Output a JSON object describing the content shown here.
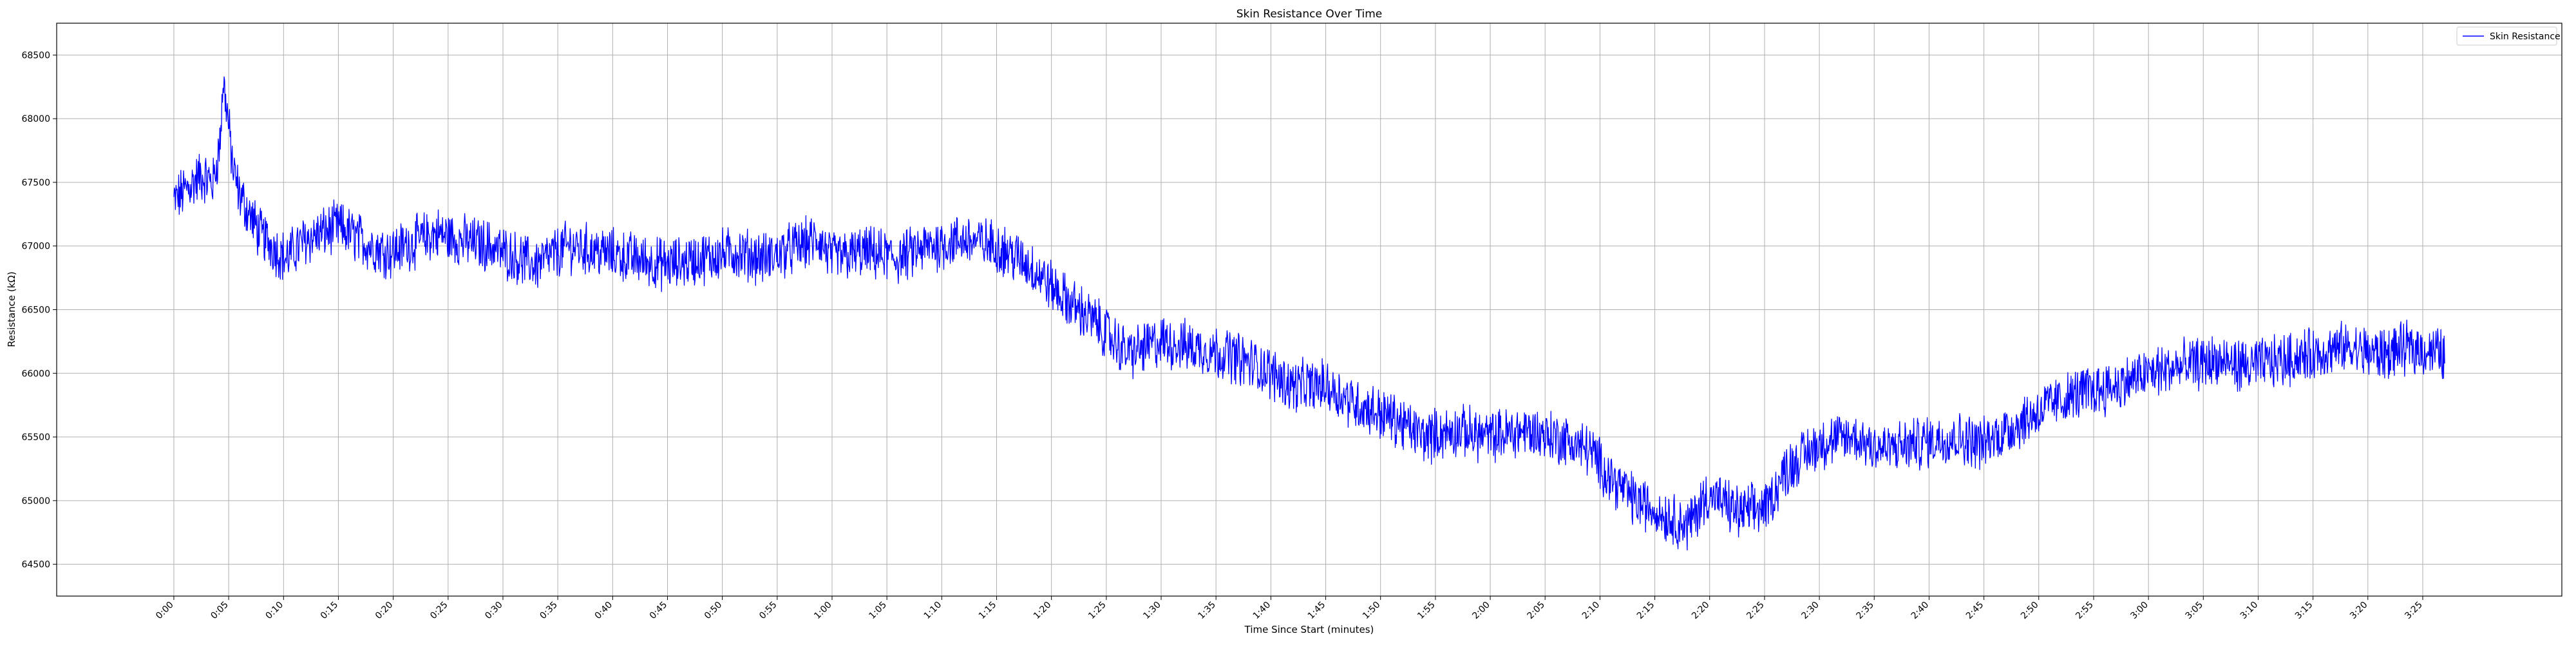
{
  "chart_data": {
    "type": "line",
    "title": "Skin Resistance Over Time",
    "xlabel": "Time Since Start (minutes)",
    "ylabel": "Resistance (kΩ)",
    "xlim": [
      -0.178,
      3.628
    ],
    "ylim": [
      64250,
      68750
    ],
    "x_ticks": [
      0,
      0.0833,
      0.1667,
      0.25,
      0.3333,
      0.4167,
      0.5,
      0.5833,
      0.6667,
      0.75,
      0.8333,
      0.9167,
      1.0,
      1.0833,
      1.1667,
      1.25,
      1.3333,
      1.4167,
      1.5,
      1.5833,
      1.6667,
      1.75,
      1.8333,
      1.9167,
      2.0,
      2.0833,
      2.1667,
      2.25,
      2.3333,
      2.4167,
      2.5,
      2.5833,
      2.6667,
      2.75,
      2.8333,
      2.9167,
      3.0,
      3.0833,
      3.1667,
      3.25,
      3.3333,
      3.4167
    ],
    "x_tick_labels": [
      "0:00",
      "0:05",
      "0:10",
      "0:15",
      "0:20",
      "0:25",
      "0:30",
      "0:35",
      "0:40",
      "0:45",
      "0:50",
      "0:55",
      "1:00",
      "1:05",
      "1:10",
      "1:15",
      "1:20",
      "1:25",
      "1:30",
      "1:35",
      "1:40",
      "1:45",
      "1:50",
      "1:55",
      "2:00",
      "2:05",
      "2:10",
      "2:15",
      "2:20",
      "2:25",
      "2:30",
      "2:35",
      "2:40",
      "2:45",
      "2:50",
      "2:55",
      "3:00",
      "3:05",
      "3:10",
      "3:15",
      "3:20",
      "3:25"
    ],
    "y_ticks": [
      64500,
      65000,
      65500,
      66000,
      66500,
      67000,
      67500,
      68000,
      68500
    ],
    "y_tick_labels": [
      "64500",
      "65000",
      "65500",
      "66000",
      "66500",
      "67000",
      "67500",
      "68000",
      "68500"
    ],
    "grid": true,
    "legend_position": "top-right",
    "series": [
      {
        "name": "Skin Resistance",
        "color": "#0000ff",
        "noise_amplitude": 180,
        "points": [
          [
            0.0,
            67350
          ],
          [
            0.02,
            67450
          ],
          [
            0.04,
            67550
          ],
          [
            0.06,
            67500
          ],
          [
            0.07,
            67800
          ],
          [
            0.075,
            68300
          ],
          [
            0.08,
            68100
          ],
          [
            0.09,
            67600
          ],
          [
            0.1,
            67400
          ],
          [
            0.13,
            67100
          ],
          [
            0.15,
            67000
          ],
          [
            0.17,
            66900
          ],
          [
            0.2,
            67050
          ],
          [
            0.25,
            67150
          ],
          [
            0.3,
            67000
          ],
          [
            0.33,
            66950
          ],
          [
            0.35,
            67000
          ],
          [
            0.4,
            67100
          ],
          [
            0.43,
            67050
          ],
          [
            0.48,
            67000
          ],
          [
            0.5,
            66950
          ],
          [
            0.55,
            66850
          ],
          [
            0.6,
            67000
          ],
          [
            0.65,
            66950
          ],
          [
            0.7,
            66900
          ],
          [
            0.75,
            66850
          ],
          [
            0.8,
            66900
          ],
          [
            0.85,
            66950
          ],
          [
            0.9,
            66900
          ],
          [
            0.95,
            67000
          ],
          [
            0.98,
            67050
          ],
          [
            1.0,
            66900
          ],
          [
            1.05,
            66950
          ],
          [
            1.1,
            66900
          ],
          [
            1.15,
            67000
          ],
          [
            1.2,
            67050
          ],
          [
            1.25,
            67000
          ],
          [
            1.3,
            66850
          ],
          [
            1.35,
            66600
          ],
          [
            1.4,
            66400
          ],
          [
            1.45,
            66150
          ],
          [
            1.5,
            66250
          ],
          [
            1.55,
            66200
          ],
          [
            1.6,
            66150
          ],
          [
            1.65,
            66050
          ],
          [
            1.7,
            65900
          ],
          [
            1.75,
            65900
          ],
          [
            1.8,
            65750
          ],
          [
            1.85,
            65650
          ],
          [
            1.9,
            65500
          ],
          [
            1.95,
            65550
          ],
          [
            2.0,
            65500
          ],
          [
            2.05,
            65550
          ],
          [
            2.1,
            65500
          ],
          [
            2.15,
            65400
          ],
          [
            2.18,
            65200
          ],
          [
            2.22,
            65000
          ],
          [
            2.26,
            64900
          ],
          [
            2.3,
            64800
          ],
          [
            2.33,
            65050
          ],
          [
            2.38,
            64900
          ],
          [
            2.42,
            64950
          ],
          [
            2.45,
            65250
          ],
          [
            2.5,
            65450
          ],
          [
            2.55,
            65500
          ],
          [
            2.6,
            65400
          ],
          [
            2.65,
            65450
          ],
          [
            2.7,
            65500
          ],
          [
            2.75,
            65450
          ],
          [
            2.8,
            65600
          ],
          [
            2.85,
            65750
          ],
          [
            2.9,
            65850
          ],
          [
            2.95,
            65900
          ],
          [
            3.0,
            66000
          ],
          [
            3.05,
            66050
          ],
          [
            3.1,
            66100
          ],
          [
            3.15,
            66050
          ],
          [
            3.2,
            66100
          ],
          [
            3.25,
            66150
          ],
          [
            3.3,
            66200
          ],
          [
            3.35,
            66150
          ],
          [
            3.4,
            66200
          ],
          [
            3.45,
            66150
          ]
        ]
      }
    ]
  }
}
